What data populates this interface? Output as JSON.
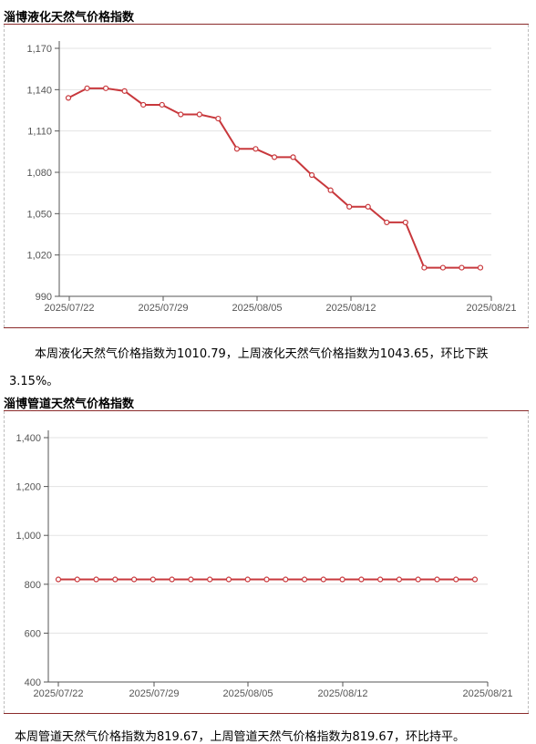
{
  "sections": [
    {
      "title": "淄博液化天然气价格指数",
      "note_line1": "本周液化天然气价格指数为1010.79，上周液化天然气价格指数为1043.65，环比下跌",
      "note_line2": "3.15%。"
    },
    {
      "title": "淄博管道天然气价格指数",
      "note_line1": "本周管道天然气价格指数为819.67，上周管道天然气价格指数为819.67，环比持平。",
      "note_line2": ""
    }
  ],
  "colors": {
    "line": "#c8383c",
    "rule": "#8b2b2b",
    "grid": "#e3e3e3",
    "axis": "#555555"
  },
  "chart_data": [
    {
      "type": "line",
      "title": "淄博液化天然气价格指数",
      "x_ticks": [
        "2025/07/22",
        "2025/07/29",
        "2025/08/05",
        "2025/08/12",
        "2025/08/21"
      ],
      "y_ticks": [
        "990",
        "1,020",
        "1,050",
        "1,080",
        "1,110",
        "1,140",
        "1,170"
      ],
      "ylim": [
        990,
        1170
      ],
      "grid": true,
      "series": [
        {
          "values": [
            1134,
            1141,
            1141,
            1139,
            1129,
            1129,
            1122,
            1122,
            1119,
            1097,
            1097,
            1091,
            1091,
            1078,
            1067,
            1055,
            1055,
            1043.65,
            1043.65,
            1010.79,
            1010.79,
            1010.79,
            1010.79
          ]
        }
      ]
    },
    {
      "type": "line",
      "title": "淄博管道天然气价格指数",
      "x_ticks": [
        "2025/07/22",
        "2025/07/29",
        "2025/08/05",
        "2025/08/12",
        "2025/08/21"
      ],
      "y_ticks": [
        "400",
        "600",
        "800",
        "1,000",
        "1,200",
        "1,400"
      ],
      "ylim": [
        400,
        1400
      ],
      "grid": true,
      "series": [
        {
          "values": [
            819.67,
            819.67,
            819.67,
            819.67,
            819.67,
            819.67,
            819.67,
            819.67,
            819.67,
            819.67,
            819.67,
            819.67,
            819.67,
            819.67,
            819.67,
            819.67,
            819.67,
            819.67,
            819.67,
            819.67,
            819.67,
            819.67,
            819.67
          ]
        }
      ]
    }
  ]
}
